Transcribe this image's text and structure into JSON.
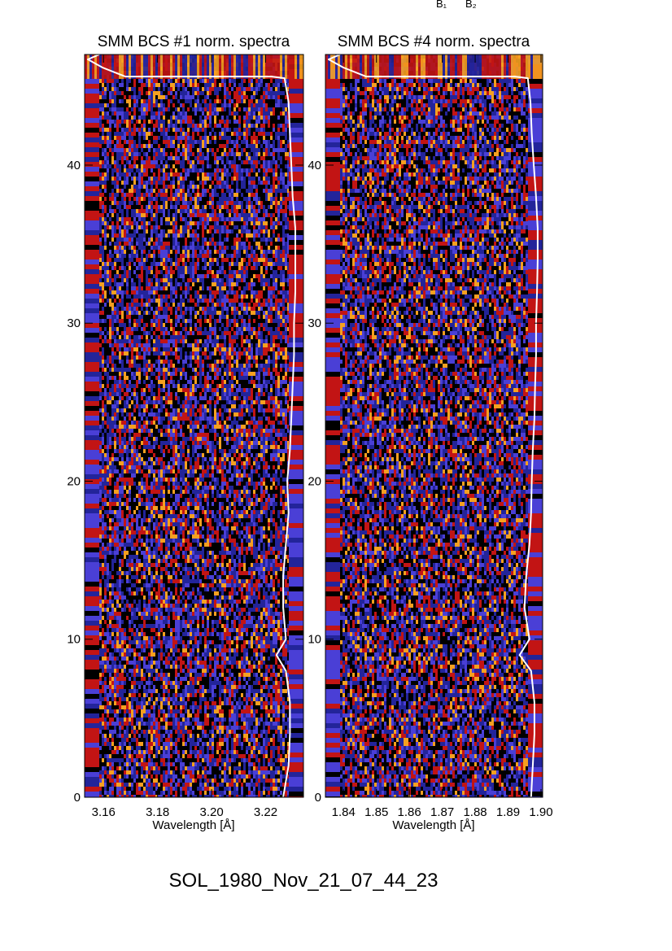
{
  "corner_labels": [
    "B₁",
    "B₂"
  ],
  "figure_title": "SOL_1980_Nov_21_07_44_23",
  "colors": {
    "low": "#000000",
    "mid_low": "#23249a",
    "mid": "#4a3fd6",
    "high": "#c21414",
    "top": "#f5a020",
    "curve": "#ffffff"
  },
  "chart_data": [
    {
      "type": "heatmap",
      "title": "SMM BCS #1 norm. spectra",
      "xlabel": "Wavelength [Å]",
      "ylabel": "",
      "xlim": [
        3.153,
        3.234
      ],
      "ylim": [
        0,
        47
      ],
      "x_ticks": [
        "3.16",
        "3.18",
        "3.20",
        "3.22"
      ],
      "x_tick_values": [
        3.16,
        3.18,
        3.2,
        3.22
      ],
      "y_ticks": [
        "0",
        "10",
        "20",
        "30",
        "40"
      ],
      "y_tick_values": [
        0,
        10,
        20,
        30,
        40
      ],
      "overlay_profile": [
        {
          "y": 0,
          "x": 3.2265
        },
        {
          "y": 2,
          "x": 3.2285
        },
        {
          "y": 4,
          "x": 3.229
        },
        {
          "y": 6,
          "x": 3.229
        },
        {
          "y": 8,
          "x": 3.2275
        },
        {
          "y": 9,
          "x": 3.224
        },
        {
          "y": 10,
          "x": 3.2275
        },
        {
          "y": 12,
          "x": 3.2265
        },
        {
          "y": 14,
          "x": 3.2265
        },
        {
          "y": 16,
          "x": 3.2275
        },
        {
          "y": 18,
          "x": 3.2285
        },
        {
          "y": 20,
          "x": 3.228
        },
        {
          "y": 22,
          "x": 3.229
        },
        {
          "y": 24,
          "x": 3.2295
        },
        {
          "y": 26,
          "x": 3.23
        },
        {
          "y": 28,
          "x": 3.2305
        },
        {
          "y": 30,
          "x": 3.2305
        },
        {
          "y": 32,
          "x": 3.231
        },
        {
          "y": 34,
          "x": 3.231
        },
        {
          "y": 36,
          "x": 3.231
        },
        {
          "y": 38,
          "x": 3.23
        },
        {
          "y": 40,
          "x": 3.2295
        },
        {
          "y": 42,
          "x": 3.229
        },
        {
          "y": 44,
          "x": 3.2285
        },
        {
          "y": 45.5,
          "x": 3.227
        }
      ]
    },
    {
      "type": "heatmap",
      "title": "SMM BCS #4 norm. spectra",
      "xlabel": "Wavelength [Å]",
      "ylabel": "",
      "xlim": [
        1.8345,
        1.9005
      ],
      "ylim": [
        0,
        47
      ],
      "x_ticks": [
        "1.84",
        "1.85",
        "1.86",
        "1.87",
        "1.88",
        "1.89",
        "1.90"
      ],
      "x_tick_values": [
        1.84,
        1.85,
        1.86,
        1.87,
        1.88,
        1.89,
        1.9
      ],
      "y_ticks": [
        "0",
        "10",
        "20",
        "30",
        "40"
      ],
      "y_tick_values": [
        0,
        10,
        20,
        30,
        40
      ],
      "overlay_profile": [
        {
          "y": 0,
          "x": 1.897
        },
        {
          "y": 2,
          "x": 1.8975
        },
        {
          "y": 4,
          "x": 1.898
        },
        {
          "y": 6,
          "x": 1.898
        },
        {
          "y": 8,
          "x": 1.897
        },
        {
          "y": 9,
          "x": 1.8935
        },
        {
          "y": 10,
          "x": 1.8965
        },
        {
          "y": 12,
          "x": 1.895
        },
        {
          "y": 14,
          "x": 1.8955
        },
        {
          "y": 16,
          "x": 1.8965
        },
        {
          "y": 18,
          "x": 1.897
        },
        {
          "y": 20,
          "x": 1.8972
        },
        {
          "y": 22,
          "x": 1.8975
        },
        {
          "y": 24,
          "x": 1.898
        },
        {
          "y": 26,
          "x": 1.8982
        },
        {
          "y": 28,
          "x": 1.8985
        },
        {
          "y": 30,
          "x": 1.8985
        },
        {
          "y": 32,
          "x": 1.8988
        },
        {
          "y": 34,
          "x": 1.899
        },
        {
          "y": 36,
          "x": 1.899
        },
        {
          "y": 38,
          "x": 1.8985
        },
        {
          "y": 40,
          "x": 1.8978
        },
        {
          "y": 42,
          "x": 1.8972
        },
        {
          "y": 44,
          "x": 1.8968
        },
        {
          "y": 45.5,
          "x": 1.896
        }
      ]
    }
  ]
}
